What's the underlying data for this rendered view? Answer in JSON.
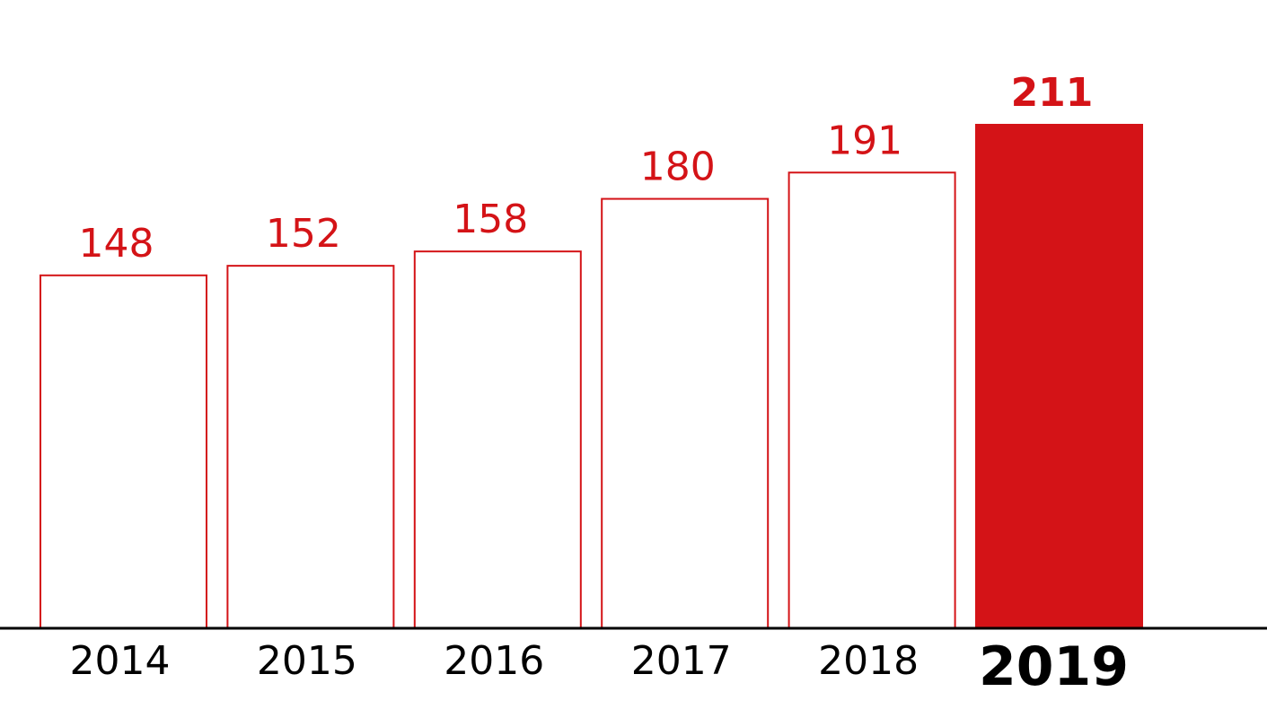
{
  "chart_data": {
    "type": "bar",
    "title": "",
    "xlabel": "",
    "ylabel": "",
    "categories": [
      "2014",
      "2015",
      "2016",
      "2017",
      "2018",
      "2019"
    ],
    "values": [
      148,
      152,
      158,
      180,
      191,
      211
    ],
    "value_labels": [
      "148",
      "152",
      "158",
      "180",
      "191",
      "211"
    ],
    "highlight_index": 5,
    "ylim": [
      0,
      211
    ],
    "grid": false,
    "legend": "none",
    "colors": {
      "accent": "#d41317",
      "outline_bar_fill": "#ffffff",
      "axis": "#000000",
      "category_text": "#000000",
      "highlight_text": "#d41317"
    }
  }
}
